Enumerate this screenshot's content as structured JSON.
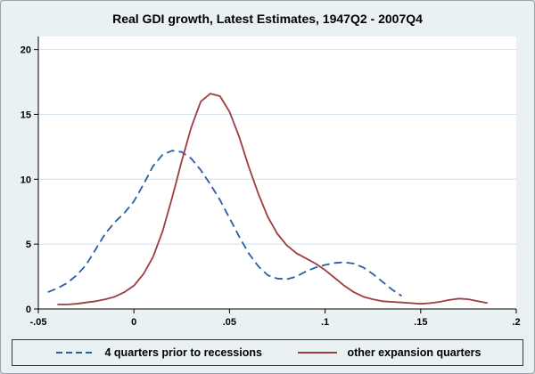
{
  "chart_data": {
    "type": "line",
    "title": "Real GDI growth, Latest Estimates, 1947Q2 - 2007Q4",
    "xlabel": "",
    "ylabel": "",
    "xlim": [
      -0.05,
      0.2
    ],
    "ylim": [
      0,
      20
    ],
    "xticks": [
      -0.05,
      0,
      0.05,
      0.1,
      0.15,
      0.2
    ],
    "xtick_labels": [
      "-.05",
      "0",
      ".05",
      ".1",
      ".15",
      ".2"
    ],
    "yticks": [
      0,
      5,
      10,
      15,
      20
    ],
    "ytick_labels": [
      "0",
      "5",
      "10",
      "15",
      "20"
    ],
    "grid": "horizontal",
    "grid_color": "#d0e0ec",
    "background_color": "#eaf1f3",
    "plot_background": "#ffffff",
    "legend_position": "bottom",
    "series": [
      {
        "name": "4 quarters prior to recessions",
        "color": "#2a5caa",
        "style": "dashed",
        "x": [
          -0.045,
          -0.04,
          -0.035,
          -0.03,
          -0.025,
          -0.02,
          -0.015,
          -0.01,
          -0.005,
          0,
          0.005,
          0.01,
          0.015,
          0.02,
          0.025,
          0.03,
          0.035,
          0.04,
          0.045,
          0.05,
          0.055,
          0.06,
          0.065,
          0.07,
          0.075,
          0.08,
          0.085,
          0.09,
          0.095,
          0.1,
          0.105,
          0.11,
          0.115,
          0.12,
          0.125,
          0.13,
          0.135,
          0.14
        ],
        "values": [
          1.3,
          1.6,
          2.0,
          2.6,
          3.4,
          4.6,
          5.8,
          6.7,
          7.4,
          8.3,
          9.6,
          11.0,
          11.9,
          12.2,
          12.1,
          11.6,
          10.7,
          9.6,
          8.4,
          7.0,
          5.6,
          4.3,
          3.3,
          2.6,
          2.35,
          2.3,
          2.5,
          2.9,
          3.2,
          3.4,
          3.55,
          3.6,
          3.5,
          3.2,
          2.7,
          2.1,
          1.5,
          1.0
        ]
      },
      {
        "name": "other expansion quarters",
        "color": "#9e3d3f",
        "style": "solid",
        "x": [
          -0.04,
          -0.035,
          -0.03,
          -0.025,
          -0.02,
          -0.015,
          -0.01,
          -0.005,
          0,
          0.005,
          0.01,
          0.015,
          0.02,
          0.025,
          0.03,
          0.035,
          0.04,
          0.045,
          0.05,
          0.055,
          0.06,
          0.065,
          0.07,
          0.075,
          0.08,
          0.085,
          0.09,
          0.095,
          0.1,
          0.105,
          0.11,
          0.115,
          0.12,
          0.125,
          0.13,
          0.135,
          0.14,
          0.145,
          0.15,
          0.155,
          0.16,
          0.165,
          0.17,
          0.175,
          0.18,
          0.185
        ],
        "values": [
          0.35,
          0.35,
          0.4,
          0.5,
          0.6,
          0.75,
          0.95,
          1.3,
          1.8,
          2.7,
          4.0,
          6.0,
          8.6,
          11.4,
          14.0,
          16.0,
          16.6,
          16.4,
          15.2,
          13.3,
          11.0,
          8.9,
          7.1,
          5.8,
          4.9,
          4.3,
          3.9,
          3.5,
          3.0,
          2.4,
          1.8,
          1.3,
          0.95,
          0.75,
          0.6,
          0.55,
          0.5,
          0.45,
          0.4,
          0.45,
          0.55,
          0.7,
          0.8,
          0.75,
          0.6,
          0.45
        ]
      }
    ]
  }
}
